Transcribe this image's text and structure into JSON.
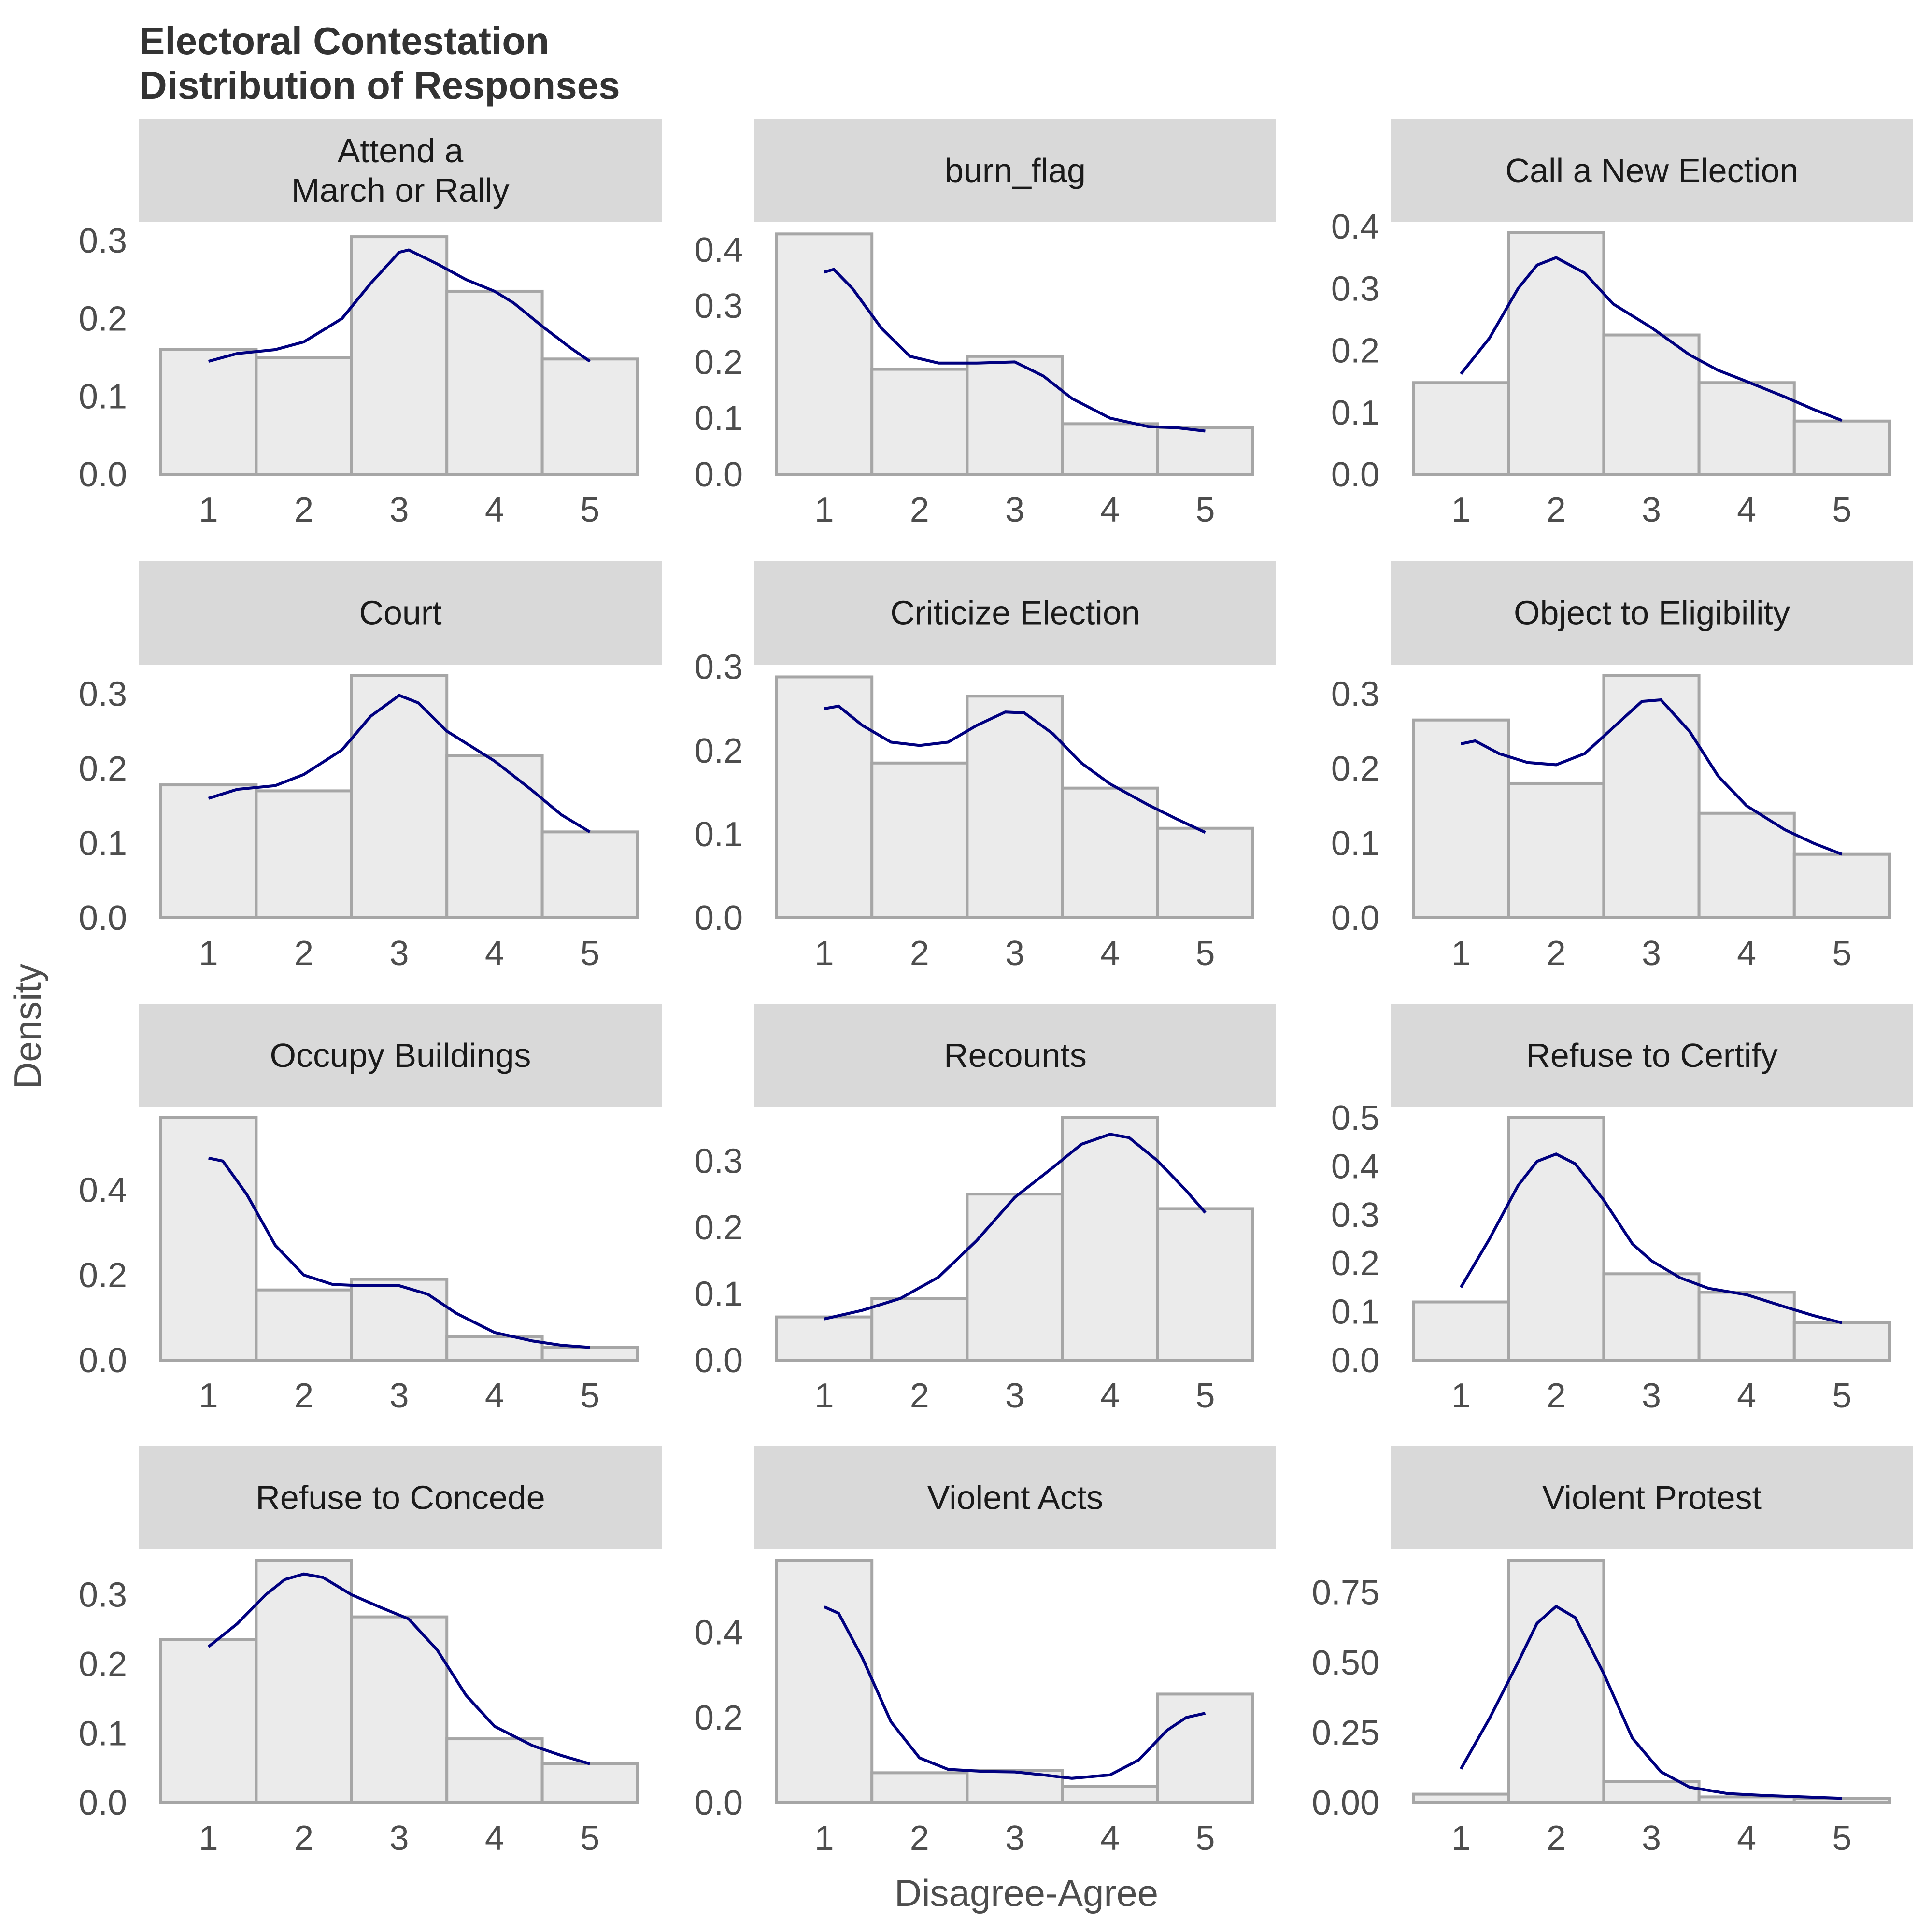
{
  "title_lines": [
    "Electoral Contestation",
    "Distribution of Responses"
  ],
  "colors": {
    "bar_fill": "#ebebeb",
    "bar_stroke": "#a6a6a6",
    "density_line": "#00007f",
    "strip": "#d9d9d9"
  },
  "chart_data": {
    "type": "bar",
    "overlay": "density line",
    "xlabel": "Disagree-Agree",
    "ylabel": "Density",
    "x_ticks": [
      "1",
      "2",
      "3",
      "4",
      "5"
    ],
    "grid": false,
    "panels": [
      {
        "strip": [
          "Attend a",
          "March or Rally"
        ],
        "yticks": [
          "0.0",
          "0.1",
          "0.2",
          "0.3"
        ],
        "ylim": [
          0,
          0.31
        ],
        "bars": [
          0.16,
          0.15,
          0.305,
          0.235,
          0.148
        ],
        "density": [
          [
            1,
            0.145
          ],
          [
            1.3,
            0.155
          ],
          [
            1.7,
            0.16
          ],
          [
            2,
            0.17
          ],
          [
            2.4,
            0.2
          ],
          [
            2.7,
            0.245
          ],
          [
            3,
            0.285
          ],
          [
            3.1,
            0.288
          ],
          [
            3.4,
            0.27
          ],
          [
            3.7,
            0.25
          ],
          [
            4,
            0.235
          ],
          [
            4.2,
            0.22
          ],
          [
            4.5,
            0.19
          ],
          [
            4.8,
            0.162
          ],
          [
            5,
            0.145
          ]
        ]
      },
      {
        "strip": [
          "burn_flag"
        ],
        "yticks": [
          "0.0",
          "0.1",
          "0.2",
          "0.3",
          "0.4"
        ],
        "ylim": [
          0,
          0.43
        ],
        "bars": [
          0.428,
          0.187,
          0.21,
          0.09,
          0.083
        ],
        "density": [
          [
            1,
            0.36
          ],
          [
            1.1,
            0.365
          ],
          [
            1.3,
            0.33
          ],
          [
            1.6,
            0.26
          ],
          [
            1.9,
            0.21
          ],
          [
            2.2,
            0.198
          ],
          [
            2.6,
            0.198
          ],
          [
            3,
            0.2
          ],
          [
            3.3,
            0.175
          ],
          [
            3.6,
            0.135
          ],
          [
            4,
            0.1
          ],
          [
            4.4,
            0.085
          ],
          [
            4.7,
            0.083
          ],
          [
            5,
            0.077
          ]
        ]
      },
      {
        "strip": [
          "Call a New Election"
        ],
        "yticks": [
          "0.0",
          "0.1",
          "0.2",
          "0.3",
          "0.4"
        ],
        "ylim": [
          0,
          0.39
        ],
        "bars": [
          0.148,
          0.39,
          0.225,
          0.148,
          0.086
        ],
        "density": [
          [
            1,
            0.162
          ],
          [
            1.3,
            0.22
          ],
          [
            1.6,
            0.3
          ],
          [
            1.8,
            0.338
          ],
          [
            2,
            0.35
          ],
          [
            2.3,
            0.325
          ],
          [
            2.6,
            0.275
          ],
          [
            3,
            0.237
          ],
          [
            3.4,
            0.193
          ],
          [
            3.7,
            0.168
          ],
          [
            4,
            0.15
          ],
          [
            4.4,
            0.125
          ],
          [
            4.7,
            0.105
          ],
          [
            5,
            0.087
          ]
        ]
      },
      {
        "strip": [
          "Court"
        ],
        "yticks": [
          "0.0",
          "0.1",
          "0.2",
          "0.3"
        ],
        "ylim": [
          0,
          0.325
        ],
        "bars": [
          0.178,
          0.17,
          0.325,
          0.217,
          0.115
        ],
        "density": [
          [
            1,
            0.16
          ],
          [
            1.3,
            0.172
          ],
          [
            1.7,
            0.177
          ],
          [
            2,
            0.192
          ],
          [
            2.4,
            0.225
          ],
          [
            2.7,
            0.27
          ],
          [
            3,
            0.298
          ],
          [
            3.2,
            0.288
          ],
          [
            3.5,
            0.25
          ],
          [
            4,
            0.21
          ],
          [
            4.4,
            0.17
          ],
          [
            4.7,
            0.138
          ],
          [
            5,
            0.115
          ]
        ]
      },
      {
        "strip": [
          "Criticize Election"
        ],
        "yticks": [
          "0.0",
          "0.1",
          "0.2",
          "0.3"
        ],
        "ylim": [
          0,
          0.29
        ],
        "bars": [
          0.288,
          0.185,
          0.265,
          0.155,
          0.107
        ],
        "density": [
          [
            1,
            0.25
          ],
          [
            1.15,
            0.253
          ],
          [
            1.4,
            0.23
          ],
          [
            1.7,
            0.21
          ],
          [
            2,
            0.206
          ],
          [
            2.3,
            0.21
          ],
          [
            2.6,
            0.23
          ],
          [
            2.9,
            0.246
          ],
          [
            3.1,
            0.245
          ],
          [
            3.4,
            0.22
          ],
          [
            3.7,
            0.185
          ],
          [
            4,
            0.16
          ],
          [
            4.4,
            0.135
          ],
          [
            4.7,
            0.118
          ],
          [
            5,
            0.102
          ]
        ]
      },
      {
        "strip": [
          "Object to Eligibility"
        ],
        "yticks": [
          "0.0",
          "0.1",
          "0.2",
          "0.3"
        ],
        "ylim": [
          0,
          0.325
        ],
        "bars": [
          0.265,
          0.18,
          0.325,
          0.14,
          0.085
        ],
        "density": [
          [
            1,
            0.233
          ],
          [
            1.15,
            0.237
          ],
          [
            1.4,
            0.22
          ],
          [
            1.7,
            0.208
          ],
          [
            2,
            0.205
          ],
          [
            2.3,
            0.22
          ],
          [
            2.6,
            0.255
          ],
          [
            2.9,
            0.29
          ],
          [
            3.1,
            0.292
          ],
          [
            3.4,
            0.25
          ],
          [
            3.7,
            0.19
          ],
          [
            4,
            0.15
          ],
          [
            4.4,
            0.118
          ],
          [
            4.7,
            0.1
          ],
          [
            5,
            0.085
          ]
        ]
      },
      {
        "strip": [
          "Occupy Buildings"
        ],
        "yticks": [
          "0.0",
          "0.2",
          "0.4"
        ],
        "ylim": [
          0,
          0.57
        ],
        "bars": [
          0.57,
          0.165,
          0.19,
          0.055,
          0.03
        ],
        "density": [
          [
            1,
            0.475
          ],
          [
            1.15,
            0.468
          ],
          [
            1.4,
            0.39
          ],
          [
            1.7,
            0.27
          ],
          [
            2,
            0.2
          ],
          [
            2.3,
            0.178
          ],
          [
            2.6,
            0.175
          ],
          [
            3,
            0.175
          ],
          [
            3.3,
            0.155
          ],
          [
            3.6,
            0.11
          ],
          [
            4,
            0.065
          ],
          [
            4.4,
            0.045
          ],
          [
            4.7,
            0.035
          ],
          [
            5,
            0.03
          ]
        ]
      },
      {
        "strip": [
          "Recounts"
        ],
        "yticks": [
          "0.0",
          "0.1",
          "0.2",
          "0.3"
        ],
        "ylim": [
          0,
          0.365
        ],
        "bars": [
          0.065,
          0.093,
          0.25,
          0.365,
          0.228
        ],
        "density": [
          [
            1,
            0.062
          ],
          [
            1.4,
            0.075
          ],
          [
            1.8,
            0.093
          ],
          [
            2.2,
            0.125
          ],
          [
            2.6,
            0.18
          ],
          [
            3,
            0.245
          ],
          [
            3.4,
            0.29
          ],
          [
            3.7,
            0.325
          ],
          [
            4,
            0.34
          ],
          [
            4.2,
            0.335
          ],
          [
            4.5,
            0.3
          ],
          [
            4.8,
            0.255
          ],
          [
            5,
            0.222
          ]
        ]
      },
      {
        "strip": [
          "Refuse to Certify"
        ],
        "yticks": [
          "0.0",
          "0.1",
          "0.2",
          "0.3",
          "0.4",
          "0.5"
        ],
        "ylim": [
          0,
          0.5
        ],
        "bars": [
          0.12,
          0.5,
          0.178,
          0.14,
          0.077
        ],
        "density": [
          [
            1,
            0.15
          ],
          [
            1.3,
            0.25
          ],
          [
            1.6,
            0.36
          ],
          [
            1.8,
            0.41
          ],
          [
            2,
            0.425
          ],
          [
            2.2,
            0.405
          ],
          [
            2.5,
            0.33
          ],
          [
            2.8,
            0.24
          ],
          [
            3,
            0.205
          ],
          [
            3.3,
            0.17
          ],
          [
            3.6,
            0.148
          ],
          [
            4,
            0.135
          ],
          [
            4.4,
            0.11
          ],
          [
            4.7,
            0.092
          ],
          [
            5,
            0.077
          ]
        ]
      },
      {
        "strip": [
          "Refuse to Concede"
        ],
        "yticks": [
          "0.0",
          "0.1",
          "0.2",
          "0.3"
        ],
        "ylim": [
          0,
          0.35
        ],
        "bars": [
          0.235,
          0.35,
          0.268,
          0.092,
          0.056
        ],
        "density": [
          [
            1,
            0.225
          ],
          [
            1.3,
            0.258
          ],
          [
            1.6,
            0.3
          ],
          [
            1.8,
            0.322
          ],
          [
            2,
            0.33
          ],
          [
            2.2,
            0.325
          ],
          [
            2.5,
            0.3
          ],
          [
            2.8,
            0.282
          ],
          [
            3.1,
            0.265
          ],
          [
            3.4,
            0.22
          ],
          [
            3.7,
            0.155
          ],
          [
            4,
            0.11
          ],
          [
            4.4,
            0.082
          ],
          [
            4.7,
            0.068
          ],
          [
            5,
            0.056
          ]
        ]
      },
      {
        "strip": [
          "Violent Acts"
        ],
        "yticks": [
          "0.0",
          "0.2",
          "0.4"
        ],
        "ylim": [
          0,
          0.57
        ],
        "bars": [
          0.57,
          0.07,
          0.075,
          0.038,
          0.255
        ],
        "density": [
          [
            1,
            0.46
          ],
          [
            1.15,
            0.445
          ],
          [
            1.4,
            0.34
          ],
          [
            1.7,
            0.19
          ],
          [
            2,
            0.105
          ],
          [
            2.3,
            0.078
          ],
          [
            2.7,
            0.073
          ],
          [
            3,
            0.072
          ],
          [
            3.3,
            0.065
          ],
          [
            3.6,
            0.057
          ],
          [
            4,
            0.065
          ],
          [
            4.3,
            0.1
          ],
          [
            4.6,
            0.17
          ],
          [
            4.8,
            0.2
          ],
          [
            5,
            0.21
          ]
        ]
      },
      {
        "strip": [
          "Violent Protest"
        ],
        "yticks": [
          "0.00",
          "0.25",
          "0.50",
          "0.75"
        ],
        "ylim": [
          0,
          0.865
        ],
        "bars": [
          0.03,
          0.865,
          0.075,
          0.02,
          0.015
        ],
        "density": [
          [
            1,
            0.12
          ],
          [
            1.3,
            0.3
          ],
          [
            1.6,
            0.5
          ],
          [
            1.8,
            0.64
          ],
          [
            2,
            0.7
          ],
          [
            2.2,
            0.66
          ],
          [
            2.5,
            0.46
          ],
          [
            2.8,
            0.23
          ],
          [
            3.1,
            0.11
          ],
          [
            3.4,
            0.055
          ],
          [
            3.8,
            0.032
          ],
          [
            4.2,
            0.025
          ],
          [
            4.6,
            0.02
          ],
          [
            5,
            0.015
          ]
        ]
      }
    ]
  }
}
